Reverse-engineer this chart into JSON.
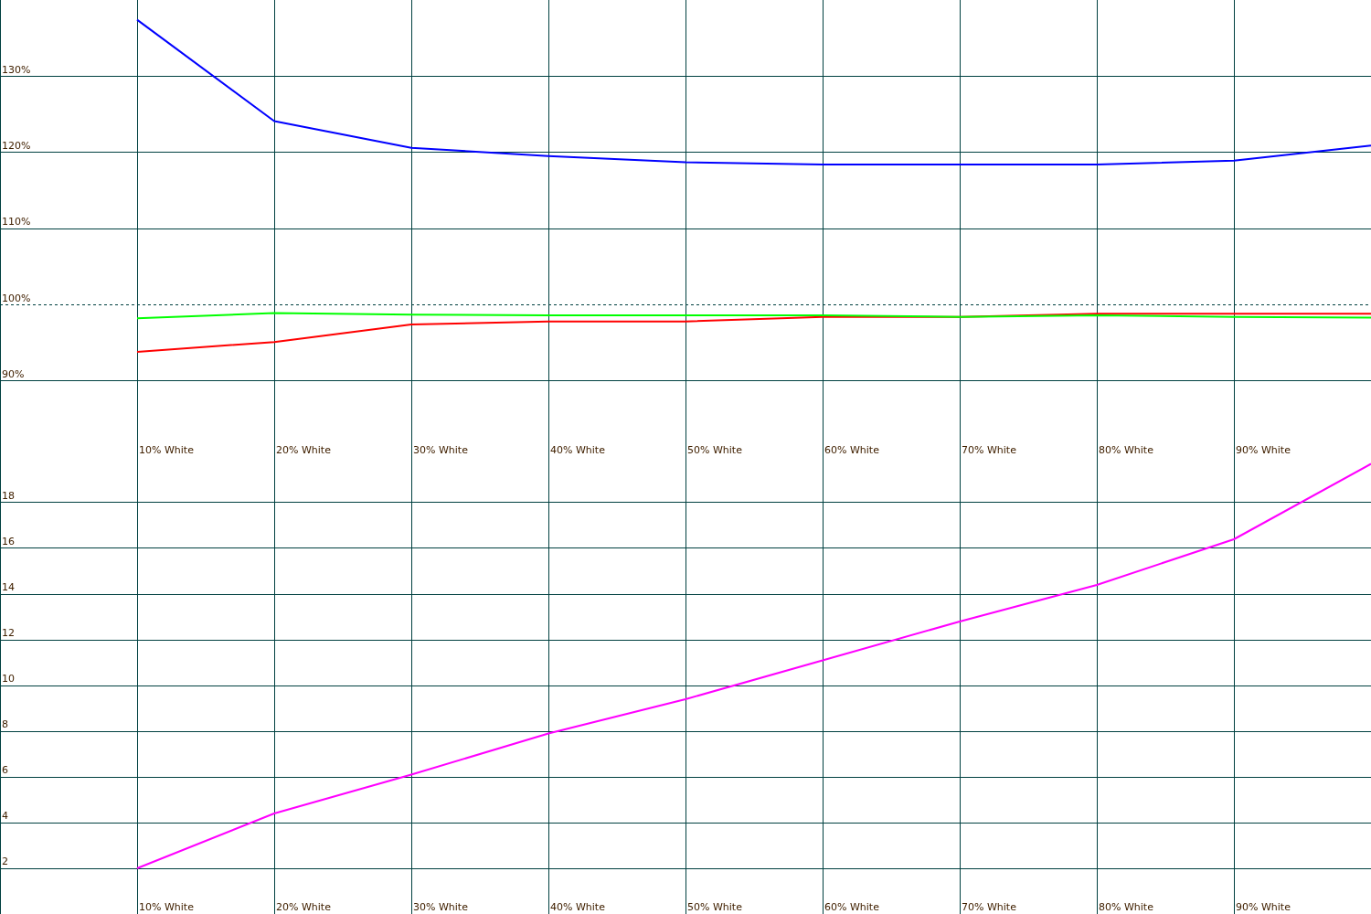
{
  "chart_data": [
    {
      "type": "line",
      "categories": [
        "10% White",
        "20% White",
        "30% White",
        "40% White",
        "50% White",
        "60% White",
        "70% White",
        "80% White",
        "90% White",
        null
      ],
      "series": [
        {
          "color": "#0000ff",
          "values": [
            137.4,
            124.1,
            120.6,
            119.5,
            118.7,
            118.4,
            118.4,
            118.4,
            118.9,
            120.9
          ]
        },
        {
          "color": "#00ff00",
          "values": [
            98.2,
            98.9,
            98.7,
            98.6,
            98.6,
            98.6,
            98.4,
            98.6,
            98.4,
            98.3
          ]
        },
        {
          "color": "#ff0000",
          "values": [
            93.8,
            95.1,
            97.4,
            97.8,
            97.8,
            98.4,
            98.4,
            98.8,
            98.8,
            98.8
          ]
        }
      ],
      "ylim": [
        80,
        140
      ],
      "yticks": [
        {
          "value": 90,
          "label": "90%"
        },
        {
          "value": 100,
          "label": "100%"
        },
        {
          "value": 110,
          "label": "110%"
        },
        {
          "value": 120,
          "label": "120%"
        },
        {
          "value": 130,
          "label": "130%"
        }
      ],
      "ref_lines": [
        {
          "axis": "y",
          "value": 100,
          "line_style": "dashed",
          "color": "#004040"
        }
      ],
      "grid": true,
      "legend": false
    },
    {
      "type": "line",
      "categories": [
        "10% White",
        "20% White",
        "30% White",
        "40% White",
        "50% White",
        "60% White",
        "70% White",
        "80% White",
        "90% White",
        null
      ],
      "series": [
        {
          "color": "#ff00ff",
          "values": [
            2.0,
            4.4,
            6.1,
            7.9,
            9.4,
            11.1,
            12.8,
            14.4,
            16.4,
            19.7
          ]
        }
      ],
      "ylim": [
        0,
        20
      ],
      "yticks": [
        2,
        4,
        6,
        8,
        10,
        12,
        14,
        16,
        18
      ],
      "grid": true,
      "legend": false
    }
  ]
}
